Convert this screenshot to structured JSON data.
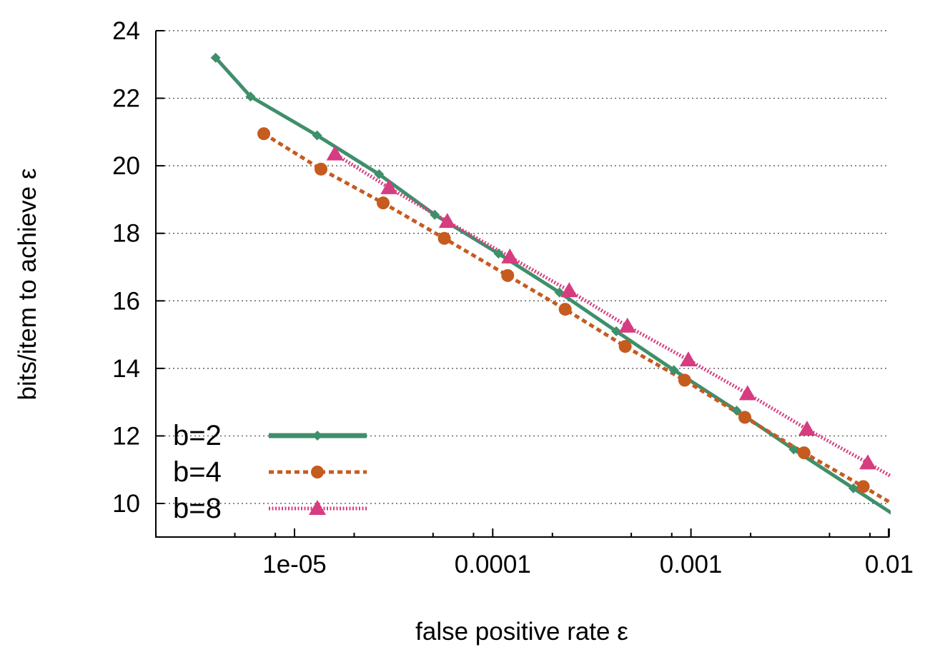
{
  "chart_data": {
    "type": "line",
    "title": "",
    "xlabel": "false positive rate ε",
    "ylabel": "bits/item to achieve ε",
    "xscale": "log",
    "xlim": [
      2e-06,
      0.01
    ],
    "ylim": [
      9,
      24
    ],
    "xticks": [
      1e-05,
      0.0001,
      0.001,
      0.01
    ],
    "xtick_labels": [
      "1e-05",
      "0.0001",
      "0.001",
      "0.01"
    ],
    "yticks": [
      10,
      12,
      14,
      16,
      18,
      20,
      22,
      24
    ],
    "ytick_labels": [
      "10",
      "12",
      "14",
      "16",
      "18",
      "20",
      "22",
      "24"
    ],
    "grid": "horizontal dotted",
    "legend_position": "bottom-left",
    "series": [
      {
        "name": "b=2",
        "color": "#3f8f6b",
        "style": "solid",
        "marker": "diamond",
        "x": [
          4e-06,
          6e-06,
          1.3e-05,
          2.67e-05,
          5.1e-05,
          0.000107,
          0.000217,
          0.00042,
          0.00082,
          0.0017,
          0.0033,
          0.0066,
          0.0132
        ],
        "y": [
          23.2,
          22.05,
          20.9,
          19.75,
          18.55,
          17.4,
          16.25,
          15.1,
          13.95,
          12.75,
          11.6,
          10.45,
          9.3
        ]
      },
      {
        "name": "b=4",
        "color": "#c65b1f",
        "style": "dashed",
        "marker": "circle",
        "x": [
          7e-06,
          1.36e-05,
          2.8e-05,
          5.7e-05,
          0.000119,
          0.000232,
          0.000466,
          0.00093,
          0.00187,
          0.00372,
          0.0074,
          0.0132
        ],
        "y": [
          20.95,
          19.9,
          18.9,
          17.85,
          16.75,
          15.75,
          14.65,
          13.65,
          12.55,
          11.5,
          10.5,
          9.63
        ]
      },
      {
        "name": "b=8",
        "color": "#d63c80",
        "style": "dotted",
        "marker": "triangle",
        "x": [
          1.6e-05,
          3e-05,
          5.9e-05,
          0.000122,
          0.000243,
          0.000478,
          0.00097,
          0.00193,
          0.00385,
          0.0078,
          0.0132
        ],
        "y": [
          20.35,
          19.35,
          18.35,
          17.3,
          16.3,
          15.25,
          14.25,
          13.25,
          12.2,
          11.2,
          10.43
        ]
      }
    ]
  }
}
